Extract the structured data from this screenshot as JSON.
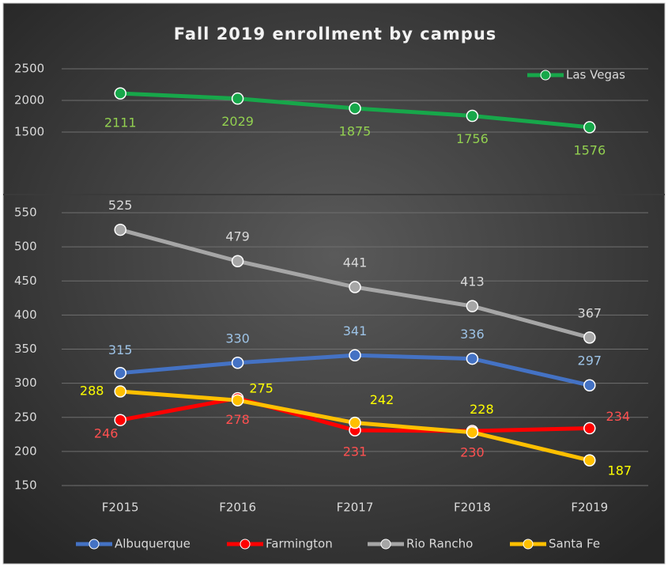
{
  "chart_data": [
    {
      "type": "line",
      "title": "Fall 2019 enrollment by campus",
      "ylim": [
        1000,
        2500
      ],
      "yticks": [
        1500,
        2000,
        2500
      ],
      "grid": true,
      "legend": "top-right",
      "series": [
        {
          "name": "Las Vegas",
          "color": "#17a74a",
          "label_color": "#92d050",
          "values": [
            2111,
            2029,
            1875,
            1756,
            1576
          ]
        }
      ]
    },
    {
      "type": "line",
      "categories": [
        "F2015",
        "F2016",
        "F2017",
        "F2018",
        "F2019"
      ],
      "ylim": [
        150,
        550
      ],
      "yticks": [
        150,
        200,
        250,
        300,
        350,
        400,
        450,
        500,
        550
      ],
      "grid": true,
      "legend": "bottom",
      "series": [
        {
          "name": "Albuquerque",
          "color": "#4472c4",
          "label_color": "#9dc3e6",
          "values": [
            315,
            330,
            341,
            336,
            297
          ]
        },
        {
          "name": "Farmington",
          "color": "#ff0000",
          "label_color": "#ff5050",
          "values": [
            246,
            278,
            231,
            230,
            234
          ]
        },
        {
          "name": "Rio Rancho",
          "color": "#a6a6a6",
          "label_color": "#d9d9d9",
          "values": [
            525,
            479,
            441,
            413,
            367
          ]
        },
        {
          "name": "Santa Fe",
          "color": "#ffc000",
          "label_color": "#ffff00",
          "values": [
            288,
            275,
            242,
            228,
            187
          ]
        }
      ]
    }
  ]
}
